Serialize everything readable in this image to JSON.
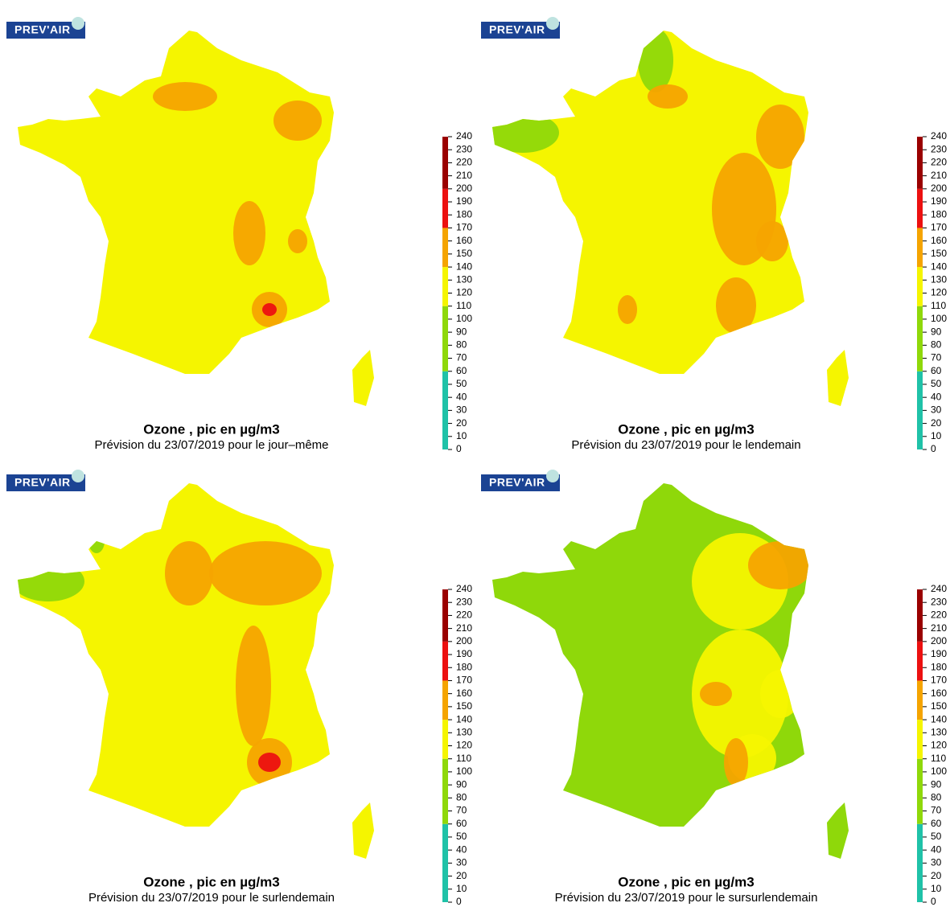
{
  "panels": [
    {
      "logo": "PREV'AIR",
      "title": "Ozone , pic en µg/m3",
      "subtitle": "Prévision du 23/07/2019 pour le jour–même"
    },
    {
      "logo": "PREV'AIR",
      "title": "Ozone , pic en µg/m3",
      "subtitle": "Prévision du 23/07/2019 pour le lendemain"
    },
    {
      "logo": "PREV'AIR",
      "title": "Ozone , pic en µg/m3",
      "subtitle": "Prévision du 23/07/2019 pour le surlendemain"
    },
    {
      "logo": "PREV'AIR",
      "title": "Ozone , pic en µg/m3",
      "subtitle": "Prévision du 23/07/2019 pour le sursurlendemain"
    }
  ],
  "colorbar": {
    "lim": [
      0,
      240
    ],
    "ticks": [
      0,
      10,
      20,
      30,
      40,
      50,
      60,
      70,
      80,
      90,
      100,
      110,
      120,
      130,
      140,
      150,
      160,
      170,
      180,
      190,
      200,
      210,
      220,
      230,
      240
    ],
    "bands": [
      {
        "lim": [
          0,
          60
        ],
        "color": "#1fc2a8"
      },
      {
        "lim": [
          60,
          110
        ],
        "color": "#8fd80a"
      },
      {
        "lim": [
          110,
          140
        ],
        "color": "#f5f500"
      },
      {
        "lim": [
          140,
          170
        ],
        "color": "#f5a400"
      },
      {
        "lim": [
          170,
          200
        ],
        "color": "#ec1010"
      },
      {
        "lim": [
          200,
          240
        ],
        "color": "#9a0000"
      }
    ]
  }
}
